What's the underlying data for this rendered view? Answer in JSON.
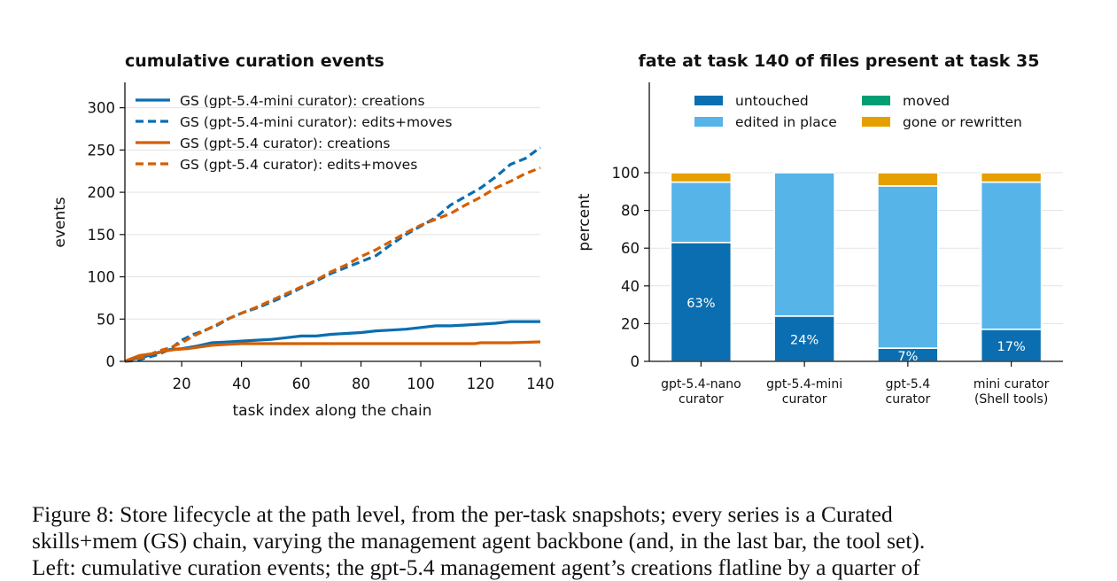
{
  "chart_data": [
    {
      "type": "line",
      "title": "cumulative curation events",
      "xlabel": "task index along the chain",
      "ylabel": "events",
      "xlim": [
        1,
        140
      ],
      "ylim": [
        0,
        330
      ],
      "xticks": [
        20,
        40,
        60,
        80,
        100,
        120,
        140
      ],
      "yticks": [
        0,
        50,
        100,
        150,
        200,
        250,
        300
      ],
      "grid": "horizontal",
      "legend_position": "top-left",
      "series": [
        {
          "name": "GS (gpt-5.4-mini curator): creations",
          "color": "#0a6eb0",
          "style": "solid",
          "points": [
            [
              1,
              0
            ],
            [
              4,
              3
            ],
            [
              8,
              6
            ],
            [
              12,
              10
            ],
            [
              16,
              14
            ],
            [
              20,
              15
            ],
            [
              25,
              18
            ],
            [
              30,
              22
            ],
            [
              36,
              23
            ],
            [
              40,
              24
            ],
            [
              45,
              25
            ],
            [
              50,
              26
            ],
            [
              55,
              28
            ],
            [
              60,
              30
            ],
            [
              65,
              30
            ],
            [
              70,
              32
            ],
            [
              75,
              33
            ],
            [
              80,
              34
            ],
            [
              85,
              36
            ],
            [
              90,
              37
            ],
            [
              95,
              38
            ],
            [
              100,
              40
            ],
            [
              105,
              42
            ],
            [
              110,
              42
            ],
            [
              115,
              43
            ],
            [
              120,
              44
            ],
            [
              125,
              45
            ],
            [
              130,
              47
            ],
            [
              135,
              47
            ],
            [
              140,
              47
            ]
          ]
        },
        {
          "name": "GS (gpt-5.4-mini curator): edits+moves",
          "color": "#0a6eb0",
          "style": "dashed",
          "points": [
            [
              1,
              0
            ],
            [
              5,
              1
            ],
            [
              8,
              4
            ],
            [
              12,
              8
            ],
            [
              16,
              14
            ],
            [
              20,
              25
            ],
            [
              24,
              32
            ],
            [
              28,
              37
            ],
            [
              32,
              43
            ],
            [
              36,
              51
            ],
            [
              40,
              57
            ],
            [
              45,
              63
            ],
            [
              50,
              70
            ],
            [
              55,
              78
            ],
            [
              60,
              87
            ],
            [
              65,
              95
            ],
            [
              70,
              104
            ],
            [
              75,
              111
            ],
            [
              80,
              118
            ],
            [
              85,
              125
            ],
            [
              90,
              138
            ],
            [
              95,
              150
            ],
            [
              100,
              160
            ],
            [
              105,
              170
            ],
            [
              110,
              185
            ],
            [
              115,
              195
            ],
            [
              120,
              205
            ],
            [
              125,
              218
            ],
            [
              130,
              233
            ],
            [
              135,
              240
            ],
            [
              140,
              253
            ]
          ]
        },
        {
          "name": "GS (gpt-5.4 curator): creations",
          "color": "#d55e00",
          "style": "solid",
          "points": [
            [
              1,
              0
            ],
            [
              3,
              3
            ],
            [
              6,
              7
            ],
            [
              10,
              9
            ],
            [
              14,
              12
            ],
            [
              18,
              14
            ],
            [
              22,
              15
            ],
            [
              26,
              17
            ],
            [
              30,
              19
            ],
            [
              35,
              20
            ],
            [
              40,
              21
            ],
            [
              60,
              21
            ],
            [
              80,
              21
            ],
            [
              100,
              21
            ],
            [
              118,
              21
            ],
            [
              120,
              22
            ],
            [
              130,
              22
            ],
            [
              140,
              23
            ]
          ]
        },
        {
          "name": "GS (gpt-5.4 curator): edits+moves",
          "color": "#d55e00",
          "style": "dashed",
          "points": [
            [
              1,
              0
            ],
            [
              4,
              2
            ],
            [
              8,
              6
            ],
            [
              12,
              12
            ],
            [
              16,
              16
            ],
            [
              20,
              22
            ],
            [
              24,
              30
            ],
            [
              28,
              37
            ],
            [
              32,
              44
            ],
            [
              36,
              51
            ],
            [
              40,
              57
            ],
            [
              45,
              64
            ],
            [
              50,
              72
            ],
            [
              55,
              80
            ],
            [
              60,
              88
            ],
            [
              65,
              96
            ],
            [
              70,
              106
            ],
            [
              75,
              114
            ],
            [
              80,
              124
            ],
            [
              85,
              132
            ],
            [
              90,
              142
            ],
            [
              95,
              152
            ],
            [
              100,
              161
            ],
            [
              105,
              168
            ],
            [
              110,
              175
            ],
            [
              115,
              185
            ],
            [
              120,
              194
            ],
            [
              125,
              205
            ],
            [
              130,
              213
            ],
            [
              135,
              222
            ],
            [
              140,
              229
            ]
          ]
        }
      ]
    },
    {
      "type": "bar",
      "stacked": true,
      "title": "fate at task 140 of files present at task 35",
      "ylabel": "percent",
      "ylim": [
        0,
        100
      ],
      "yticks": [
        0,
        20,
        40,
        60,
        80,
        100
      ],
      "grid": "horizontal",
      "legend_position": "top",
      "categories": [
        [
          "gpt-5.4-nano",
          "curator"
        ],
        [
          "gpt-5.4-mini",
          "curator"
        ],
        [
          "gpt-5.4",
          "curator"
        ],
        [
          "mini curator",
          "(Shell tools)"
        ]
      ],
      "series": [
        {
          "name": "untouched",
          "color": "#0a6eb0",
          "values": [
            63,
            24,
            7,
            17
          ]
        },
        {
          "name": "moved",
          "color": "#009e73",
          "values": [
            0,
            0,
            0,
            0
          ]
        },
        {
          "name": "edited in place",
          "color": "#56b4e9",
          "values": [
            32,
            76,
            86,
            78
          ]
        },
        {
          "name": "gone or rewritten",
          "color": "#e69f00",
          "values": [
            5,
            0,
            7,
            5
          ]
        }
      ],
      "data_labels": [
        "63%",
        "24%",
        "7%",
        "17%"
      ]
    }
  ],
  "caption": {
    "lines": [
      "Figure 8: Store lifecycle at the path level, from the per-task snapshots; every series is a Curated",
      "skills+mem (GS) chain, varying the management agent backbone (and, in the last bar, the tool set).",
      "Left: cumulative curation events; the gpt-5.4 management agent’s creations flatline by a quarter of"
    ]
  }
}
